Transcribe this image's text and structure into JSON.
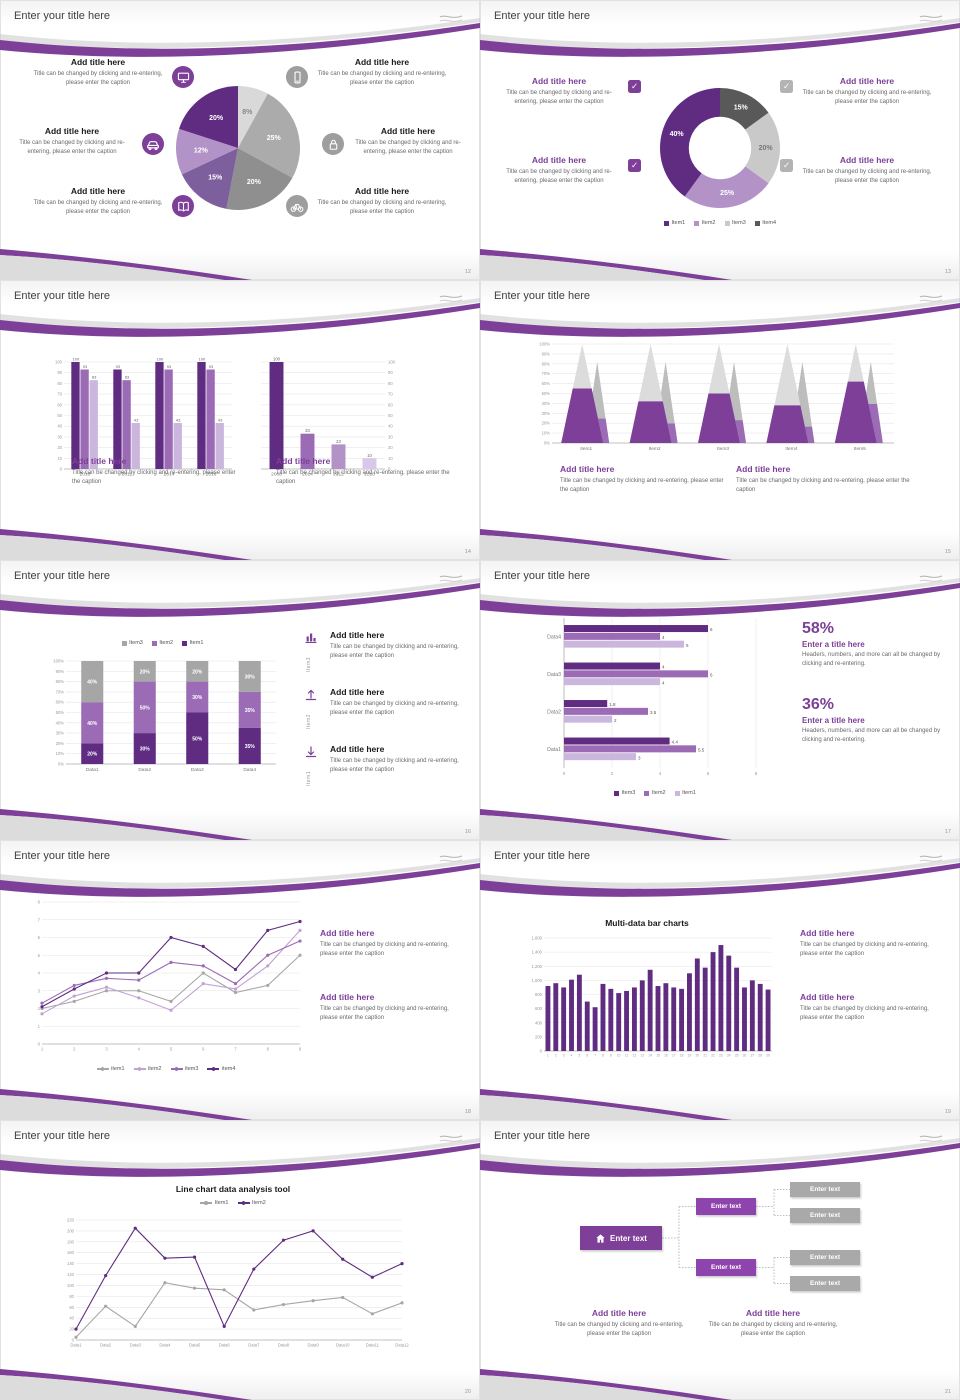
{
  "common": {
    "slide_title": "Enter your title here",
    "add_title": "Add title here",
    "caption": "Title can be changed by clicking and re-entering, please enter the caption",
    "enter_text": "Enter text",
    "enter_title": "Enter a title here",
    "stat_caption": "Headers, numbers, and more can all be changed by clicking and re-entering."
  },
  "icons": {
    "check": "✓"
  },
  "colors": {
    "accent_purple": "#7d3f98",
    "dark_purple": "#5f2c82",
    "medium_purple": "#9b6bb5",
    "light_purple": "#c3a1d6",
    "gray_dark": "#595959",
    "gray": "#a6a6a6",
    "gray_light": "#d9d9d9"
  },
  "pages": [
    "12",
    "13",
    "14",
    "15",
    "16",
    "17",
    "18",
    "19",
    "20",
    "21"
  ],
  "stats": {
    "value1": "58%",
    "value2": "36%"
  },
  "panel5": {
    "labels": [
      "Item3",
      "Item2",
      "Item1"
    ]
  },
  "chart_data": [
    {
      "id": "pie12",
      "type": "pie",
      "variant": "pie",
      "r": 62,
      "slices": [
        {
          "v": 8,
          "label": "8%",
          "color": "#d9d9d9",
          "text": "#888"
        },
        {
          "v": 25,
          "label": "25%",
          "color": "#ababab",
          "text": "#fff"
        },
        {
          "v": 20,
          "label": "20%",
          "color": "#8f8f8f",
          "text": "#fff"
        },
        {
          "v": 15,
          "label": "15%",
          "color": "#7e5f9e",
          "text": "#fff"
        },
        {
          "v": 12,
          "label": "12%",
          "color": "#b392c8",
          "text": "#fff"
        },
        {
          "v": 20,
          "label": "20%",
          "color": "#5f2c82",
          "text": "#fff"
        }
      ]
    },
    {
      "id": "donut13",
      "type": "pie",
      "variant": "donut",
      "r": 60,
      "inner": 0.52,
      "slices": [
        {
          "v": 15,
          "label": "15%",
          "color": "#595959",
          "text": "#fff"
        },
        {
          "v": 20,
          "label": "20%",
          "color": "#c9c9c9",
          "text": "#777"
        },
        {
          "v": 25,
          "label": "25%",
          "color": "#b392c8",
          "text": "#fff"
        },
        {
          "v": 40,
          "label": "40%",
          "color": "#5f2c82",
          "text": "#fff"
        }
      ],
      "legend": [
        "Item1",
        "Item2",
        "Item3",
        "Item4"
      ],
      "legend_colors": [
        "#5f2c82",
        "#b392c8",
        "#c9c9c9",
        "#595959"
      ]
    },
    {
      "id": "bars14a",
      "type": "bar",
      "variant": "grouped",
      "categories": [
        "2010",
        "2012",
        "2014",
        "2016"
      ],
      "series": [
        {
          "name": "s1",
          "color": "#5f2c82",
          "values": [
            100,
            93,
            100,
            100
          ]
        },
        {
          "name": "s2",
          "color": "#9b6bb5",
          "values": [
            93,
            83,
            93,
            93
          ]
        },
        {
          "name": "s3",
          "color": "#cbb7dd",
          "values": [
            83,
            43,
            43,
            43
          ]
        }
      ],
      "ylim": [
        0,
        100
      ],
      "yticks": [
        "0",
        "10",
        "20",
        "30",
        "40",
        "50",
        "60",
        "70",
        "80",
        "90",
        "100"
      ],
      "bar_labels": true
    },
    {
      "id": "bars14b",
      "type": "bar",
      "variant": "single",
      "categories": [
        "2008",
        "2014",
        "2012",
        "2018"
      ],
      "values": [
        100,
        33,
        23,
        10
      ],
      "colors": [
        "#5f2c82",
        "#9b6bb5",
        "#b392c8",
        "#d9c6e8"
      ],
      "ylim": [
        0,
        100
      ],
      "yticks": [
        "0",
        "10",
        "20",
        "30",
        "40",
        "50",
        "60",
        "70",
        "80",
        "90",
        "100"
      ],
      "axis": "right",
      "bar_labels": true
    },
    {
      "id": "cones15",
      "type": "bar",
      "variant": "cone",
      "categories": [
        "Item1",
        "Item2",
        "Item3",
        "Item4",
        "Item5"
      ],
      "front_fraction": [
        0.55,
        0.42,
        0.5,
        0.38,
        0.62
      ],
      "back_fraction": [
        0.3,
        0.24,
        0.28,
        0.2,
        0.48
      ],
      "yticks": [
        "0%",
        "10%",
        "20%",
        "30%",
        "40%",
        "50%",
        "60%",
        "70%",
        "80%",
        "90%",
        "100%"
      ]
    },
    {
      "id": "stack16",
      "type": "bar",
      "variant": "stacked",
      "categories": [
        "Data1",
        "Data2",
        "Data3",
        "Data4"
      ],
      "series": [
        {
          "name": "Item1",
          "color": "#5f2c82",
          "values": [
            20,
            30,
            50,
            35
          ]
        },
        {
          "name": "Item2",
          "color": "#9b6bb5",
          "values": [
            40,
            50,
            30,
            35
          ]
        },
        {
          "name": "Item3",
          "color": "#a6a6a6",
          "values": [
            40,
            20,
            20,
            30
          ]
        }
      ],
      "ylim": [
        0,
        100
      ],
      "yticks": [
        "0%",
        "10%",
        "20%",
        "30%",
        "40%",
        "50%",
        "60%",
        "70%",
        "80%",
        "90%",
        "100%"
      ],
      "legend": [
        "Item3",
        "Item2",
        "Item1"
      ],
      "legend_colors": [
        "#a6a6a6",
        "#9b6bb5",
        "#5f2c82"
      ]
    },
    {
      "id": "hbar17",
      "type": "bar",
      "variant": "grouped-horizontal",
      "categories": [
        "Data4",
        "Data3",
        "Data2",
        "Data1"
      ],
      "series": [
        {
          "name": "Item3",
          "color": "#5f2c82",
          "values": [
            6,
            4,
            1.8,
            4.4
          ]
        },
        {
          "name": "Item2",
          "color": "#9b6bb5",
          "values": [
            4,
            6,
            3.5,
            5.5
          ]
        },
        {
          "name": "Item1",
          "color": "#cbb7dd",
          "values": [
            5,
            4,
            2,
            3
          ]
        }
      ],
      "xlim": [
        0,
        8
      ],
      "xticks": [
        "0",
        "2",
        "4",
        "6",
        "8"
      ],
      "legend": [
        "Item3",
        "Item2",
        "Item1"
      ],
      "legend_colors": [
        "#5f2c82",
        "#9b6bb5",
        "#cbb7dd"
      ],
      "bar_labels": true
    },
    {
      "id": "line18",
      "type": "line",
      "x": [
        "1",
        "2",
        "3",
        "4",
        "5",
        "6",
        "7",
        "8",
        "9"
      ],
      "series": [
        {
          "name": "item1",
          "color": "#a6a6a6",
          "values": [
            2,
            2.4,
            3,
            3,
            2.4,
            4,
            2.9,
            3.3,
            5
          ]
        },
        {
          "name": "item2",
          "color": "#c3a1d6",
          "values": [
            1.7,
            2.7,
            3.2,
            2.6,
            1.9,
            3.4,
            3.1,
            4.4,
            6.4
          ]
        },
        {
          "name": "item3",
          "color": "#9b6bb5",
          "values": [
            2.3,
            3.3,
            3.7,
            3.6,
            4.6,
            4.4,
            3.4,
            5,
            5.8
          ]
        },
        {
          "name": "item4",
          "color": "#5f2c82",
          "values": [
            2.1,
            3.1,
            4,
            4,
            6,
            5.5,
            4.2,
            6.4,
            6.9
          ]
        }
      ],
      "ylim": [
        0,
        8
      ],
      "yticks": [
        "0",
        "1",
        "2",
        "3",
        "4",
        "5",
        "6",
        "7",
        "8"
      ],
      "legend": [
        "item1",
        "item2",
        "item3",
        "item4"
      ],
      "legend_colors": [
        "#a6a6a6",
        "#c3a1d6",
        "#9b6bb5",
        "#5f2c82"
      ],
      "legend_marker": "line"
    },
    {
      "id": "bars19",
      "type": "bar",
      "variant": "many",
      "title": "Multi-data bar charts",
      "categories": [
        "1",
        "2",
        "3",
        "4",
        "5",
        "6",
        "7",
        "8",
        "9",
        "10",
        "11",
        "12",
        "13",
        "14",
        "15",
        "16",
        "17",
        "18",
        "19",
        "20",
        "21",
        "22",
        "23",
        "24",
        "25",
        "26",
        "27",
        "28",
        "29"
      ],
      "values": [
        920,
        960,
        900,
        1010,
        1080,
        700,
        620,
        950,
        880,
        820,
        850,
        900,
        1000,
        1150,
        920,
        960,
        900,
        880,
        1100,
        1310,
        1180,
        1400,
        1500,
        1350,
        1180,
        900,
        1000,
        950,
        870
      ],
      "color": "#5f2c82",
      "ylim": [
        0,
        1600
      ],
      "yticks": [
        "0",
        "200",
        "400",
        "600",
        "800",
        "1,000",
        "1,200",
        "1,400",
        "1,600"
      ]
    },
    {
      "id": "line20",
      "type": "line",
      "title": "Line chart data analysis tool",
      "x": [
        "Data1",
        "Data2",
        "Data3",
        "Data4",
        "Data5",
        "Data6",
        "Data7",
        "Data8",
        "Data9",
        "Data10",
        "Data11",
        "Data12"
      ],
      "series": [
        {
          "name": "Item1",
          "color": "#a6a6a6",
          "values": [
            5,
            62,
            25,
            105,
            95,
            92,
            55,
            65,
            72,
            78,
            48,
            68
          ]
        },
        {
          "name": "Item2",
          "color": "#5f2c82",
          "values": [
            20,
            118,
            205,
            150,
            152,
            25,
            130,
            183,
            200,
            148,
            115,
            140
          ]
        }
      ],
      "ylim": [
        0,
        220
      ],
      "yticks": [
        "0",
        "20",
        "40",
        "60",
        "80",
        "100",
        "120",
        "140",
        "160",
        "180",
        "200",
        "220"
      ],
      "legend": [
        "Item1",
        "Item2"
      ],
      "legend_colors": [
        "#a6a6a6",
        "#5f2c82"
      ],
      "legend_marker": "line"
    }
  ],
  "diagram": {
    "node_label": "Enter text",
    "node_count": 7
  }
}
